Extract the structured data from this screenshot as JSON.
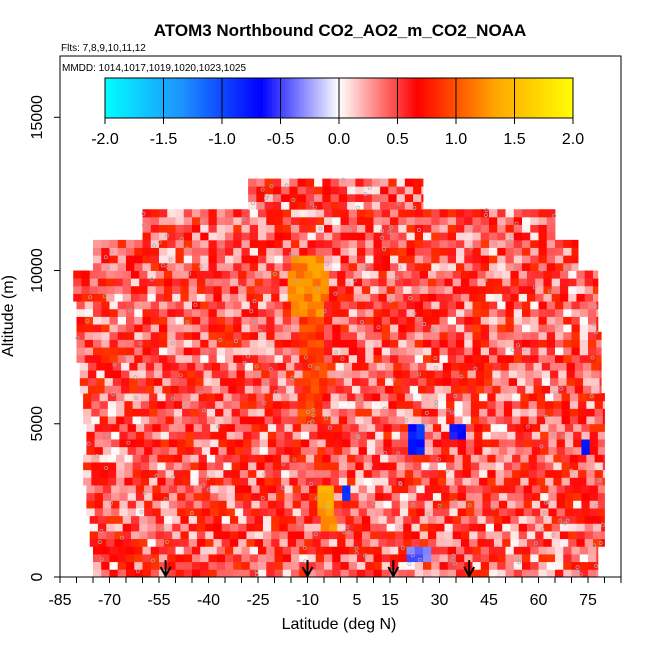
{
  "chart_data": {
    "type": "heatmap",
    "title": "ATOM3 Northbound CO2_AO2_m_CO2_NOAA",
    "subtitle_flights": "Flts: 7,8,9,10,11,12",
    "subtitle_dates": "MMDD: 1014,1017,1019,1020,1023,1025",
    "xlabel": "Latitude (deg N)",
    "ylabel": "Altitude (m)",
    "xlim": [
      -85,
      85
    ],
    "ylim": [
      0,
      17000
    ],
    "x_ticks": [
      -85,
      -70,
      -55,
      -40,
      -25,
      -10,
      5,
      15,
      30,
      45,
      60,
      75
    ],
    "x_tick_labels": [
      "-85",
      "-70",
      "-55",
      "-40",
      "-25",
      "-10",
      "5",
      "15",
      "30",
      "45",
      "60",
      "75"
    ],
    "y_ticks": [
      0,
      5000,
      10000,
      15000
    ],
    "y_tick_labels": [
      "0",
      "5000",
      "10000",
      "15000"
    ],
    "colorbar": {
      "min": -2.0,
      "max": 2.0,
      "ticks": [
        -2.0,
        -1.5,
        -1.0,
        -0.5,
        0.0,
        0.5,
        1.0,
        1.5,
        2.0
      ],
      "tick_labels": [
        "-2.0",
        "-1.5",
        "-1.0",
        "-0.5",
        "0.0",
        "0.5",
        "1.0",
        "1.5",
        "2.0"
      ],
      "colors": [
        "#00ffff",
        "#1e90ff",
        "#0000ff",
        "#ffffff",
        "#ff0000",
        "#ffa500",
        "#ffff00"
      ]
    },
    "arrow_latitudes": [
      -53,
      -10,
      16,
      39
    ],
    "altitude_bands": [
      {
        "alt_min": 0,
        "alt_max": 1000,
        "lat_min": -75,
        "lat_max": 78
      },
      {
        "alt_min": 1000,
        "alt_max": 2000,
        "lat_min": -76,
        "lat_max": 80
      },
      {
        "alt_min": 2000,
        "alt_max": 3000,
        "lat_min": -77,
        "lat_max": 80
      },
      {
        "alt_min": 3000,
        "alt_max": 4000,
        "lat_min": -78,
        "lat_max": 80
      },
      {
        "alt_min": 4000,
        "alt_max": 5000,
        "lat_min": -77,
        "lat_max": 80
      },
      {
        "alt_min": 5000,
        "alt_max": 6000,
        "lat_min": -78,
        "lat_max": 80
      },
      {
        "alt_min": 6000,
        "alt_max": 7000,
        "lat_min": -79,
        "lat_max": 79
      },
      {
        "alt_min": 7000,
        "alt_max": 8000,
        "lat_min": -80,
        "lat_max": 79
      },
      {
        "alt_min": 8000,
        "alt_max": 9000,
        "lat_min": -80,
        "lat_max": 78
      },
      {
        "alt_min": 9000,
        "alt_max": 10000,
        "lat_min": -81,
        "lat_max": 78
      },
      {
        "alt_min": 10000,
        "alt_max": 11000,
        "lat_min": -75,
        "lat_max": 72
      },
      {
        "alt_min": 11000,
        "alt_max": 12000,
        "lat_min": -60,
        "lat_max": 65
      },
      {
        "alt_min": 12000,
        "alt_max": 13000,
        "lat_min": -28,
        "lat_max": 25
      }
    ],
    "features": [
      {
        "lat_min": -16,
        "lat_max": -4,
        "alt_min": 8500,
        "alt_max": 10500,
        "value": 1.2
      },
      {
        "lat_min": -12,
        "lat_max": -5,
        "alt_min": 5000,
        "alt_max": 8500,
        "value": 0.9
      },
      {
        "lat_min": -6,
        "lat_max": -2,
        "alt_min": 1500,
        "alt_max": 3000,
        "value": 1.3
      },
      {
        "lat_min": 20,
        "lat_max": 26,
        "alt_min": 4000,
        "alt_max": 5000,
        "value": -0.8
      },
      {
        "lat_min": 32,
        "lat_max": 38,
        "alt_min": 4500,
        "alt_max": 5000,
        "value": -0.6
      },
      {
        "lat_min": 0,
        "lat_max": 4,
        "alt_min": 2500,
        "alt_max": 3000,
        "value": -1.0
      },
      {
        "lat_min": 20,
        "lat_max": 28,
        "alt_min": 500,
        "alt_max": 1000,
        "value": -0.4
      },
      {
        "lat_min": 73,
        "lat_max": 76,
        "alt_min": 3900,
        "alt_max": 4400,
        "value": -0.8
      },
      {
        "lat_min": 40,
        "lat_max": 43,
        "alt_min": 4000,
        "alt_max": 9500,
        "value": 0.8
      }
    ]
  },
  "colors": {
    "text": "#000000",
    "axis": "#000000",
    "marker": "#aaaaaa"
  }
}
